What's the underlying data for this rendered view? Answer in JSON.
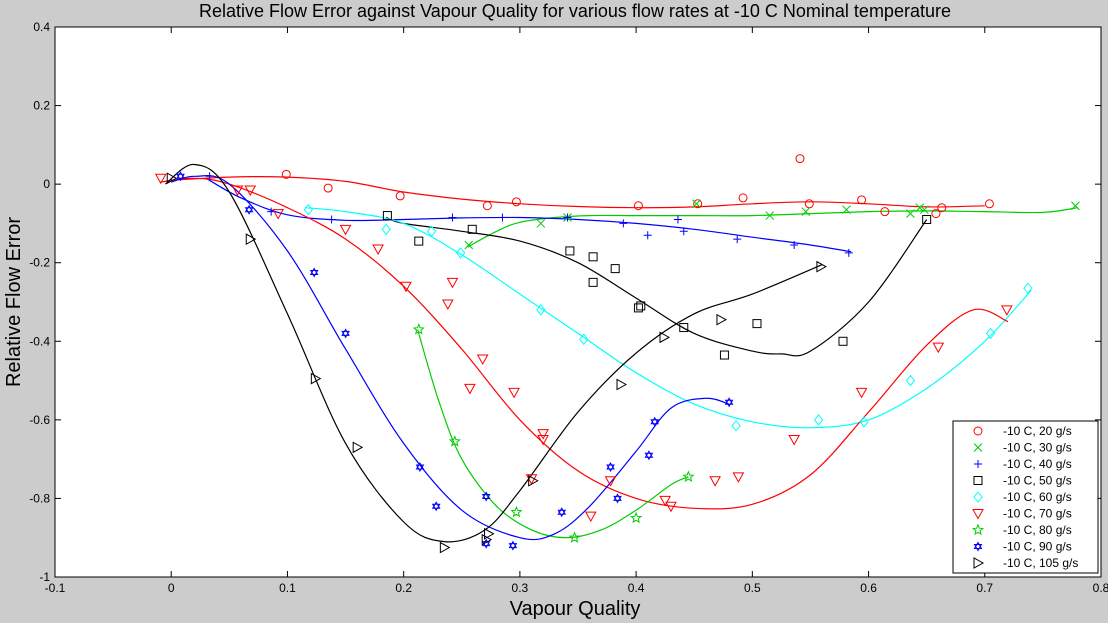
{
  "chart_data": {
    "type": "scatter",
    "title": "Relative Flow Error against Vapour Quality for various flow rates at -10 C Nominal temperature",
    "xlabel": "Vapour Quality",
    "ylabel": "Relative Flow Error",
    "xlim": [
      -0.1,
      0.8
    ],
    "ylim": [
      -1,
      0.4
    ],
    "xticks": [
      "-0.1",
      "0",
      "0.1",
      "0.2",
      "0.3",
      "0.4",
      "0.5",
      "0.6",
      "0.7",
      "0.8"
    ],
    "yticks": [
      "-1",
      "-0.8",
      "-0.6",
      "-0.4",
      "-0.2",
      "0",
      "0.2",
      "0.4"
    ],
    "grid": false,
    "legend_position": "bottom-right",
    "series": [
      {
        "name": "-10 C, 20 g/s",
        "marker": "circle",
        "color": "#ff0000",
        "x": [
          0.099,
          0.135,
          0.197,
          0.272,
          0.297,
          0.402,
          0.453,
          0.492,
          0.541,
          0.549,
          0.594,
          0.614,
          0.658,
          0.663,
          0.704
        ],
        "y": [
          0.025,
          -0.01,
          -0.03,
          -0.055,
          -0.045,
          -0.055,
          -0.05,
          -0.035,
          0.065,
          -0.05,
          -0.04,
          -0.07,
          -0.075,
          -0.06,
          -0.05
        ],
        "fit_x": [
          0.0,
          0.05,
          0.1,
          0.15,
          0.2,
          0.25,
          0.3,
          0.35,
          0.4,
          0.45,
          0.5,
          0.55,
          0.6,
          0.65,
          0.7
        ],
        "fit_y": [
          0.01,
          0.018,
          0.018,
          0.007,
          -0.02,
          -0.038,
          -0.05,
          -0.057,
          -0.06,
          -0.058,
          -0.05,
          -0.045,
          -0.05,
          -0.058,
          -0.055
        ]
      },
      {
        "name": "-10 C, 30 g/s",
        "marker": "x",
        "color": "#00cc00",
        "x": [
          0.256,
          0.318,
          0.341,
          0.452,
          0.515,
          0.546,
          0.581,
          0.636,
          0.644,
          0.648,
          0.778
        ],
        "y": [
          -0.155,
          -0.1,
          -0.085,
          -0.05,
          -0.08,
          -0.07,
          -0.065,
          -0.075,
          -0.06,
          -0.065,
          -0.055
        ],
        "fit_x": [
          0.255,
          0.28,
          0.3,
          0.33,
          0.36,
          0.4,
          0.45,
          0.5,
          0.55,
          0.6,
          0.65,
          0.7,
          0.75,
          0.78
        ],
        "fit_y": [
          -0.16,
          -0.12,
          -0.097,
          -0.085,
          -0.08,
          -0.08,
          -0.08,
          -0.08,
          -0.075,
          -0.07,
          -0.068,
          -0.07,
          -0.072,
          -0.06
        ]
      },
      {
        "name": "-10 C, 40 g/s",
        "marker": "plus",
        "color": "#0000ff",
        "x": [
          0.033,
          0.086,
          0.138,
          0.242,
          0.285,
          0.341,
          0.389,
          0.41,
          0.436,
          0.441,
          0.487,
          0.536,
          0.583
        ],
        "y": [
          0.02,
          -0.07,
          -0.09,
          -0.085,
          -0.085,
          -0.085,
          -0.1,
          -0.13,
          -0.09,
          -0.12,
          -0.14,
          -0.155,
          -0.175
        ],
        "fit_x": [
          0.03,
          0.06,
          0.1,
          0.15,
          0.2,
          0.25,
          0.3,
          0.35,
          0.4,
          0.45,
          0.5,
          0.55,
          0.585
        ],
        "fit_y": [
          0.015,
          -0.035,
          -0.078,
          -0.092,
          -0.09,
          -0.086,
          -0.085,
          -0.09,
          -0.1,
          -0.115,
          -0.135,
          -0.155,
          -0.172
        ]
      },
      {
        "name": "-10 C, 50 g/s",
        "marker": "square",
        "color": "#000000",
        "x": [
          0.186,
          0.213,
          0.259,
          0.343,
          0.363,
          0.363,
          0.382,
          0.402,
          0.404,
          0.441,
          0.476,
          0.504,
          0.578,
          0.65
        ],
        "y": [
          -0.08,
          -0.145,
          -0.115,
          -0.17,
          -0.185,
          -0.25,
          -0.215,
          -0.315,
          -0.31,
          -0.365,
          -0.435,
          -0.355,
          -0.4,
          -0.09
        ],
        "fit_x": [
          0.185,
          0.2,
          0.25,
          0.3,
          0.35,
          0.4,
          0.45,
          0.5,
          0.525,
          0.55,
          0.6,
          0.65
        ],
        "fit_y": [
          -0.085,
          -0.1,
          -0.12,
          -0.145,
          -0.2,
          -0.29,
          -0.38,
          -0.425,
          -0.432,
          -0.425,
          -0.3,
          -0.09
        ]
      },
      {
        "name": "-10 C, 60 g/s",
        "marker": "diamond",
        "color": "#00ffff",
        "x": [
          0.118,
          0.185,
          0.224,
          0.249,
          0.318,
          0.355,
          0.486,
          0.557,
          0.596,
          0.636,
          0.705,
          0.737
        ],
        "y": [
          -0.065,
          -0.115,
          -0.12,
          -0.175,
          -0.32,
          -0.395,
          -0.615,
          -0.6,
          -0.605,
          -0.5,
          -0.38,
          -0.265
        ],
        "fit_x": [
          0.115,
          0.15,
          0.2,
          0.25,
          0.3,
          0.35,
          0.4,
          0.45,
          0.5,
          0.55,
          0.6,
          0.65,
          0.7,
          0.74
        ],
        "fit_y": [
          -0.06,
          -0.07,
          -0.1,
          -0.18,
          -0.28,
          -0.38,
          -0.48,
          -0.56,
          -0.605,
          -0.62,
          -0.6,
          -0.52,
          -0.4,
          -0.27
        ]
      },
      {
        "name": "-10 C, 70 g/s",
        "marker": "triangle-down",
        "color": "#ff0000",
        "x": [
          -0.009,
          0.057,
          0.068,
          0.092,
          0.15,
          0.178,
          0.202,
          0.238,
          0.242,
          0.257,
          0.268,
          0.295,
          0.31,
          0.32,
          0.32,
          0.361,
          0.378,
          0.425,
          0.43,
          0.468,
          0.488,
          0.536,
          0.594,
          0.66,
          0.719
        ],
        "y": [
          0.015,
          -0.015,
          -0.015,
          -0.075,
          -0.115,
          -0.165,
          -0.26,
          -0.305,
          -0.25,
          -0.52,
          -0.445,
          -0.53,
          -0.75,
          -0.635,
          -0.65,
          -0.845,
          -0.755,
          -0.805,
          -0.82,
          -0.755,
          -0.745,
          -0.65,
          -0.53,
          -0.415,
          -0.32
        ],
        "fit_x": [
          -0.01,
          0.02,
          0.05,
          0.1,
          0.15,
          0.2,
          0.25,
          0.3,
          0.35,
          0.4,
          0.45,
          0.5,
          0.55,
          0.6,
          0.65,
          0.69,
          0.72
        ],
        "fit_y": [
          0.005,
          0.015,
          0.0,
          -0.06,
          -0.14,
          -0.26,
          -0.42,
          -0.6,
          -0.73,
          -0.8,
          -0.825,
          -0.815,
          -0.74,
          -0.58,
          -0.41,
          -0.32,
          -0.35
        ]
      },
      {
        "name": "-10 C, 80 g/s",
        "marker": "star",
        "color": "#00cc00",
        "x": [
          0.213,
          0.244,
          0.297,
          0.347,
          0.4,
          0.445
        ],
        "y": [
          -0.37,
          -0.655,
          -0.835,
          -0.9,
          -0.85,
          -0.745
        ],
        "fit_x": [
          0.212,
          0.23,
          0.25,
          0.28,
          0.31,
          0.34,
          0.37,
          0.4,
          0.43,
          0.445
        ],
        "fit_y": [
          -0.37,
          -0.55,
          -0.7,
          -0.82,
          -0.88,
          -0.9,
          -0.88,
          -0.83,
          -0.765,
          -0.745
        ]
      },
      {
        "name": "-10 C, 90 g/s",
        "marker": "hexagram",
        "color": "#0000ff",
        "x": [
          0.008,
          0.067,
          0.123,
          0.15,
          0.214,
          0.228,
          0.271,
          0.271,
          0.294,
          0.336,
          0.378,
          0.384,
          0.411,
          0.416,
          0.48
        ],
        "y": [
          0.02,
          -0.065,
          -0.225,
          -0.38,
          -0.72,
          -0.82,
          -0.915,
          -0.795,
          -0.92,
          -0.835,
          -0.72,
          -0.8,
          -0.69,
          -0.605,
          -0.555
        ],
        "fit_x": [
          0.0,
          0.02,
          0.05,
          0.1,
          0.15,
          0.2,
          0.25,
          0.3,
          0.33,
          0.36,
          0.4,
          0.43,
          0.46,
          0.48
        ],
        "fit_y": [
          0.005,
          0.02,
          0.0,
          -0.17,
          -0.42,
          -0.66,
          -0.83,
          -0.9,
          -0.89,
          -0.82,
          -0.68,
          -0.57,
          -0.545,
          -0.56
        ]
      },
      {
        "name": "-10 C, 105 g/s",
        "marker": "triangle-right",
        "color": "#000000",
        "x": [
          0.0,
          0.068,
          0.124,
          0.16,
          0.235,
          0.271,
          0.273,
          0.311,
          0.387,
          0.424,
          0.473,
          0.559
        ],
        "y": [
          0.015,
          -0.14,
          -0.495,
          -0.67,
          -0.925,
          -0.905,
          -0.89,
          -0.755,
          -0.51,
          -0.39,
          -0.345,
          -0.21
        ],
        "fit_x": [
          -0.005,
          0.02,
          0.05,
          0.1,
          0.15,
          0.2,
          0.235,
          0.27,
          0.3,
          0.35,
          0.4,
          0.45,
          0.5,
          0.56
        ],
        "fit_y": [
          0.0,
          0.05,
          -0.02,
          -0.33,
          -0.66,
          -0.86,
          -0.91,
          -0.88,
          -0.78,
          -0.58,
          -0.43,
          -0.33,
          -0.28,
          -0.205
        ]
      }
    ]
  }
}
